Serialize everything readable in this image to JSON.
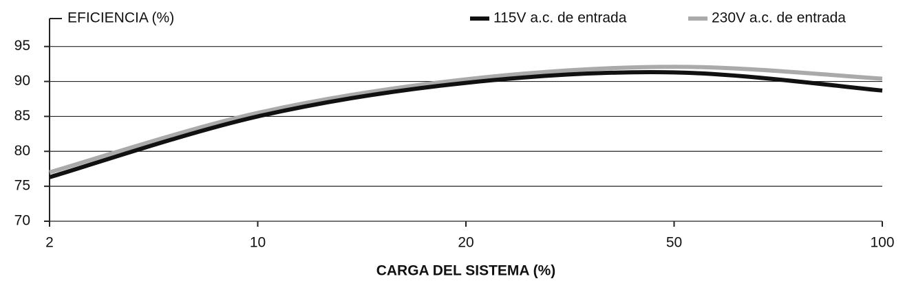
{
  "chart_data": {
    "type": "line",
    "ylabel": "EFICIENCIA (%)",
    "xlabel": "CARGA DEL SISTEMA (%)",
    "categories": [
      "2",
      "10",
      "20",
      "50",
      "100"
    ],
    "series": [
      {
        "name": "115V a.c. de entrada",
        "color": "#111111",
        "values": [
          76.3,
          85,
          89.8,
          91.3,
          88.7
        ]
      },
      {
        "name": "230V a.c. de entrada",
        "color": "#aaaaaa",
        "values": [
          77,
          85.5,
          90.3,
          92.1,
          90.4
        ]
      }
    ],
    "ylim": [
      70,
      99
    ],
    "yticks": [
      70,
      75,
      80,
      85,
      90,
      95
    ],
    "grid": true,
    "legend": "top-right"
  }
}
